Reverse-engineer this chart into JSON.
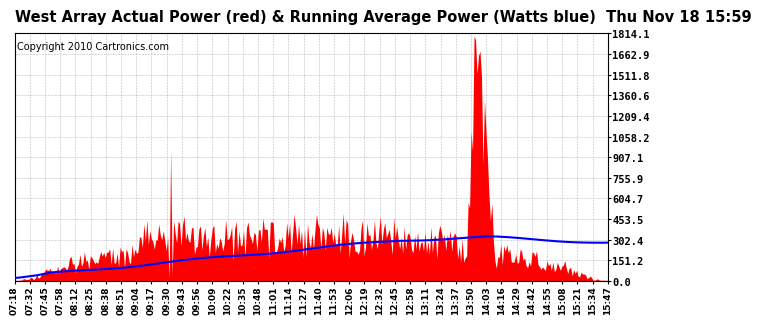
{
  "title": "West Array Actual Power (red) & Running Average Power (Watts blue)  Thu Nov 18 15:59",
  "copyright": "Copyright 2010 Cartronics.com",
  "yticks": [
    0.0,
    151.2,
    302.4,
    453.5,
    604.7,
    755.9,
    907.1,
    1058.2,
    1209.4,
    1360.6,
    1511.8,
    1662.9,
    1814.1
  ],
  "ymax": 1814.1,
  "xtick_labels": [
    "07:18",
    "07:32",
    "07:45",
    "07:58",
    "08:12",
    "08:25",
    "08:38",
    "08:51",
    "09:04",
    "09:17",
    "09:30",
    "09:43",
    "09:56",
    "10:09",
    "10:22",
    "10:35",
    "10:48",
    "11:01",
    "11:14",
    "11:27",
    "11:40",
    "11:53",
    "12:06",
    "12:19",
    "12:32",
    "12:45",
    "12:58",
    "13:11",
    "13:24",
    "13:37",
    "13:50",
    "14:03",
    "14:16",
    "14:29",
    "14:42",
    "14:55",
    "15:08",
    "15:21",
    "15:34",
    "15:47"
  ],
  "actual_color": "#FF0000",
  "average_color": "#0000FF",
  "background_color": "#FFFFFF",
  "grid_color": "#BBBBBB",
  "title_fontsize": 10.5,
  "copyright_fontsize": 7,
  "tick_fontsize": 6.5,
  "ytick_fontsize": 7.5
}
